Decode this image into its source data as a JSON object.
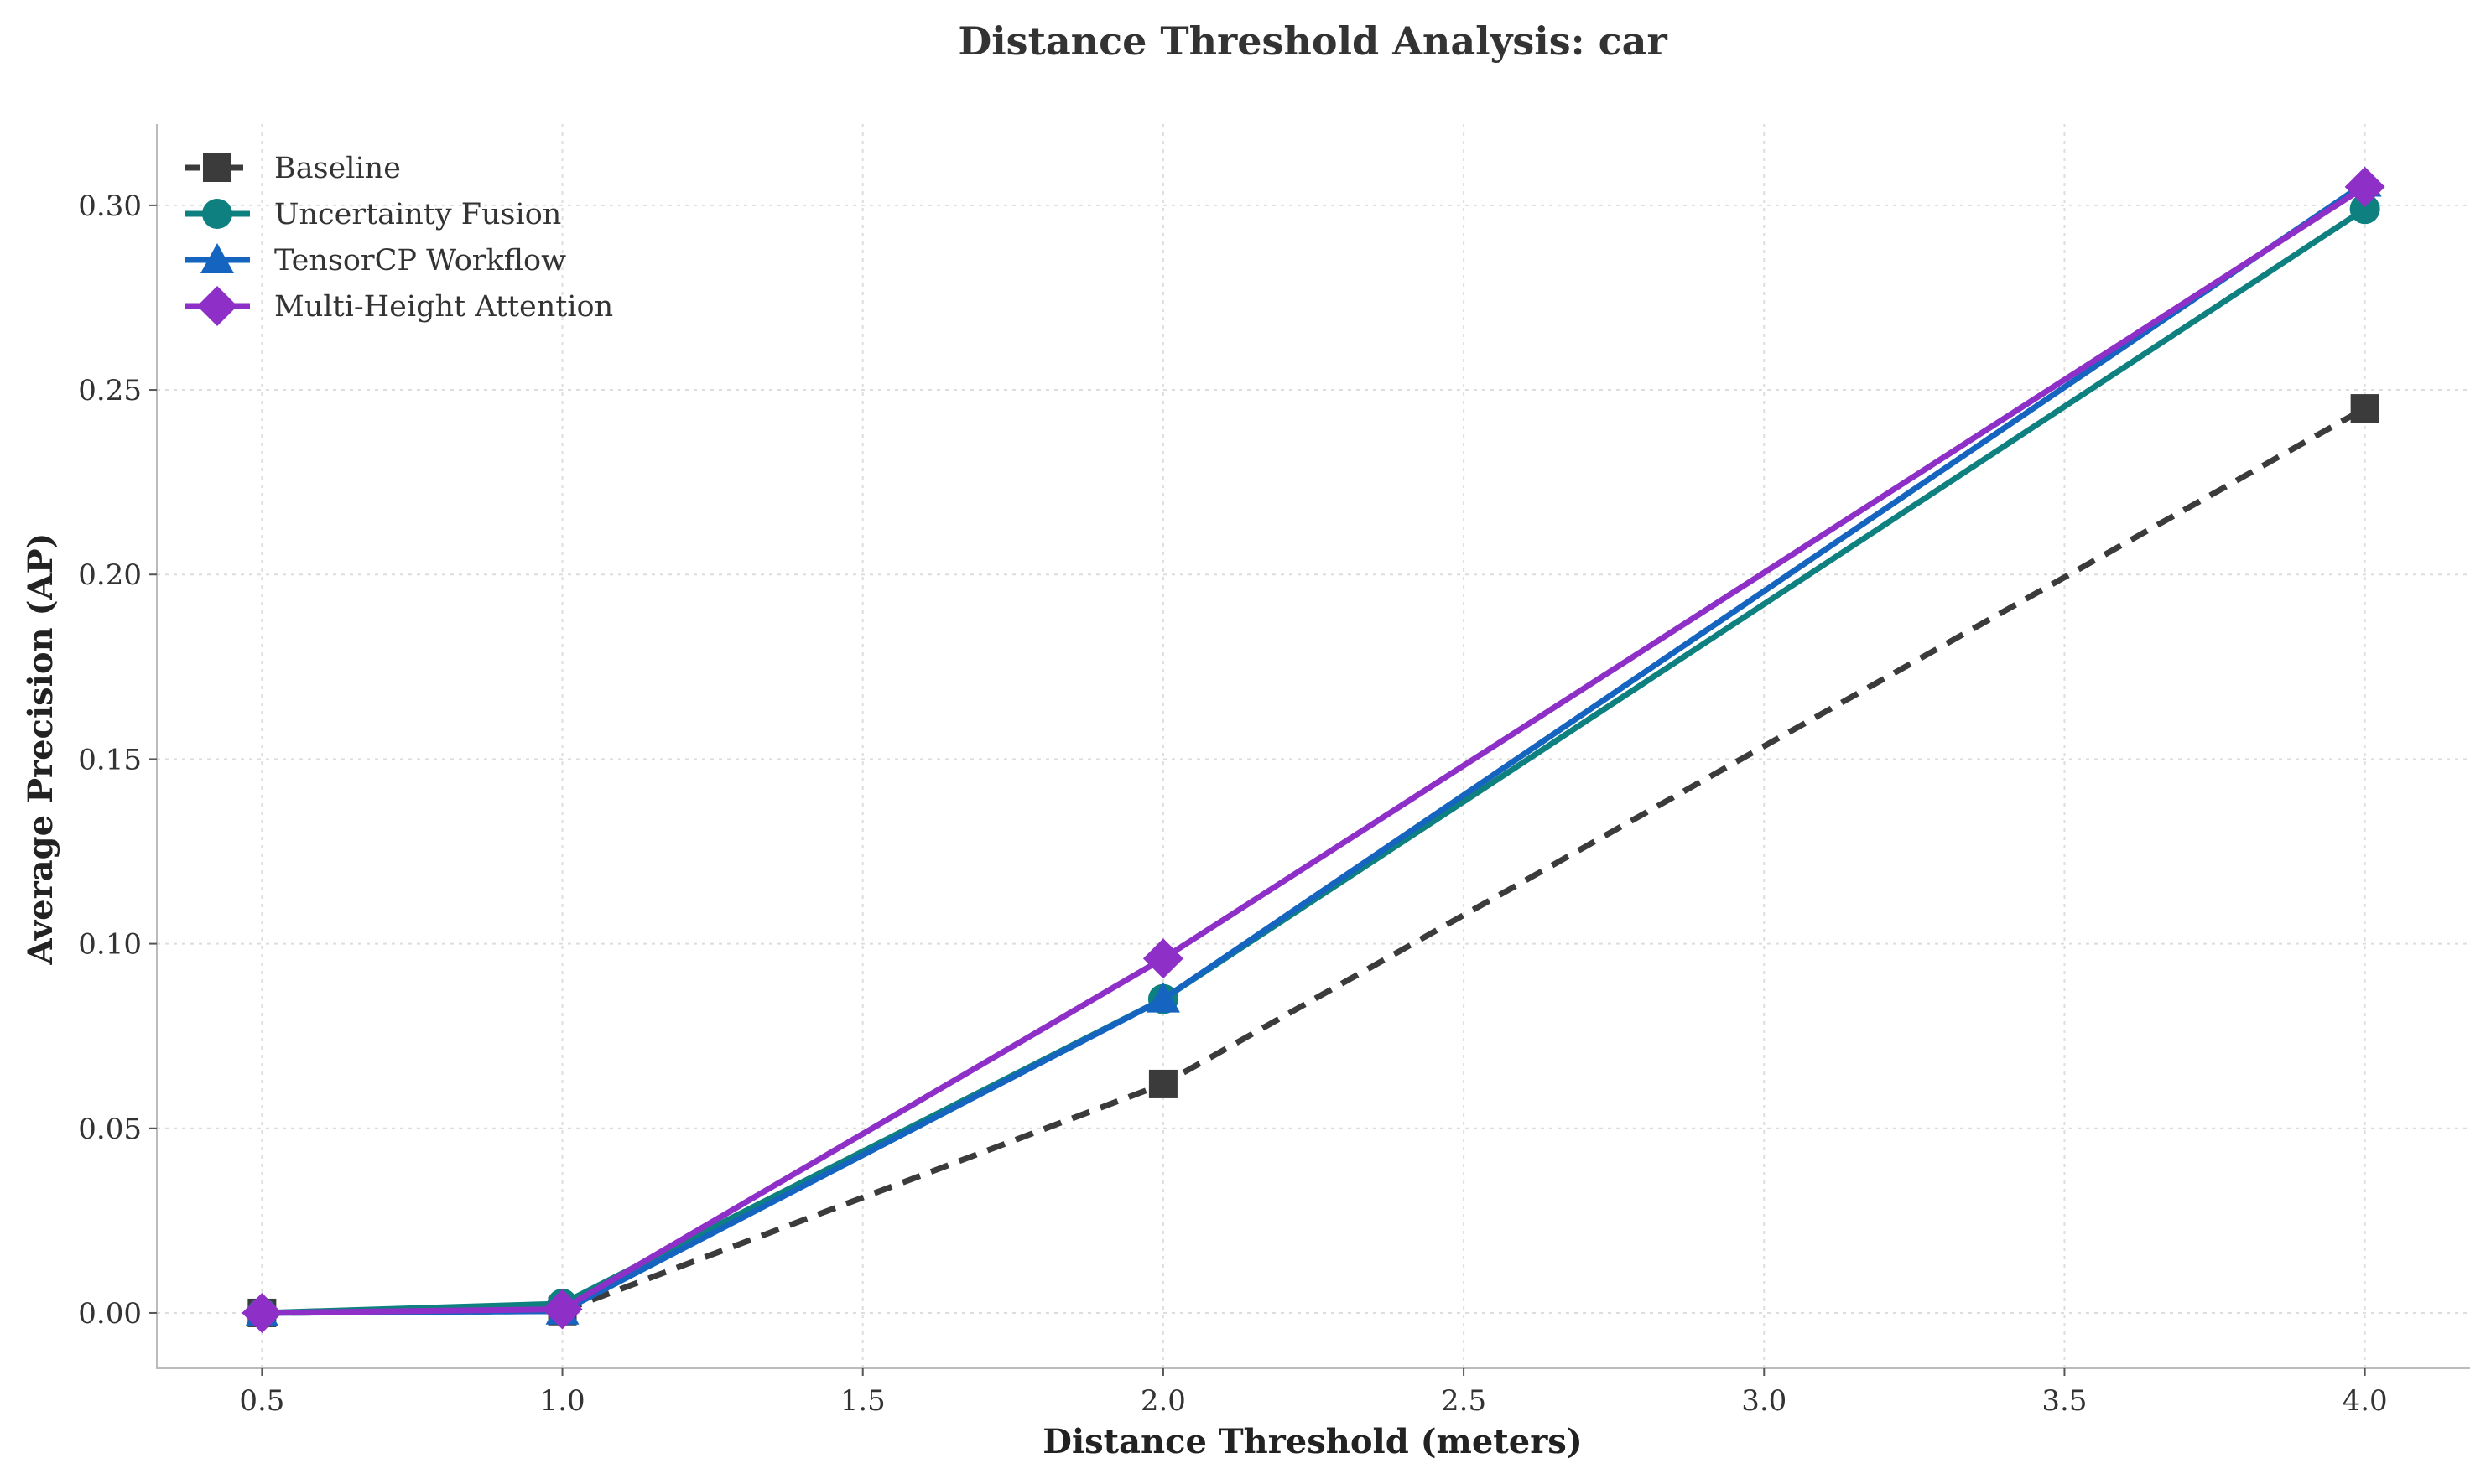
{
  "chart_data": {
    "type": "line",
    "title": "Distance Threshold Analysis: car",
    "xlabel": "Distance Threshold (meters)",
    "ylabel": "Average Precision (AP)",
    "xlim": [
      0.325,
      4.175
    ],
    "ylim": [
      -0.015,
      0.322
    ],
    "xticks": [
      0.5,
      1.0,
      1.5,
      2.0,
      2.5,
      3.0,
      3.5,
      4.0
    ],
    "xtick_labels": [
      "0.5",
      "1.0",
      "1.5",
      "2.0",
      "2.5",
      "3.0",
      "3.5",
      "4.0"
    ],
    "yticks": [
      0.0,
      0.05,
      0.1,
      0.15,
      0.2,
      0.25,
      0.3
    ],
    "ytick_labels": [
      "0.00",
      "0.05",
      "0.10",
      "0.15",
      "0.20",
      "0.25",
      "0.30"
    ],
    "grid": true,
    "legend_position": "top-left",
    "x": [
      0.5,
      1.0,
      2.0,
      4.0
    ],
    "series": [
      {
        "name": "Baseline",
        "values": [
          0.0,
          0.0005,
          0.062,
          0.245
        ],
        "color": "#3b3b3b",
        "marker": "square",
        "dashed": true
      },
      {
        "name": "Uncertainty Fusion",
        "values": [
          0.0,
          0.0025,
          0.085,
          0.299
        ],
        "color": "#0e8080",
        "marker": "circle",
        "dashed": false
      },
      {
        "name": "TensorCP Workflow",
        "values": [
          0.0,
          0.0005,
          0.085,
          0.306
        ],
        "color": "#1565c0",
        "marker": "triangle",
        "dashed": false
      },
      {
        "name": "Multi-Height Attention",
        "values": [
          0.0,
          0.001,
          0.096,
          0.305
        ],
        "color": "#8e30c8",
        "marker": "diamond",
        "dashed": false
      }
    ]
  }
}
